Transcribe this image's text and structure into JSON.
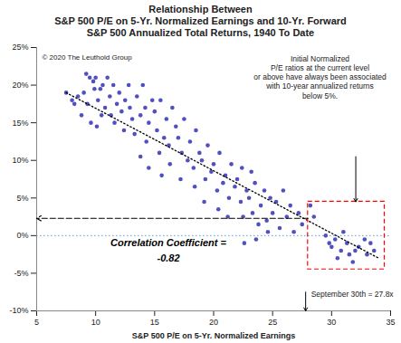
{
  "chart_data": {
    "type": "scatter",
    "title": "Relationship Between",
    "subtitle": [
      "S&P 500 P/E on 5-Yr. Normalized Earnings and 10-Yr. Forward",
      "S&P 500 Annualized Total Returns, 1940 To Date"
    ],
    "x_label": "S&P 500 P/E on 5-Yr. Normalized Earnings",
    "x": [
      7.5,
      8,
      8.2,
      8.5,
      9,
      9.2,
      9.5,
      9.8,
      10,
      9.3,
      8.8,
      9.6,
      10.2,
      10.4,
      10.6,
      10.8,
      10.5,
      9.9,
      10.1,
      11,
      11.2,
      11.5,
      11.3,
      11.8,
      11.6,
      12,
      12.2,
      12.5,
      12.8,
      12.4,
      12.9,
      13.1,
      13.5,
      13.3,
      13.8,
      14,
      14.2,
      14.5,
      14.8,
      14.3,
      15,
      15.2,
      15.5,
      15.8,
      15.4,
      16,
      16.2,
      16.5,
      16.8,
      16.3,
      17,
      17.3,
      17.5,
      17.8,
      17.2,
      18,
      18.3,
      18.5,
      18.8,
      18.4,
      19,
      19.3,
      19.5,
      19.8,
      19.2,
      20,
      20.3,
      20.5,
      20.8,
      20.4,
      21,
      21.3,
      21.5,
      21.8,
      21.2,
      22,
      22.3,
      22.5,
      22.8,
      22.4,
      23,
      23.3,
      23.5,
      23.8,
      23.2,
      24,
      24.3,
      24.5,
      24.8,
      24.6,
      25,
      25.3,
      25.6,
      25.9,
      26.2,
      26.5,
      26.8,
      27.2,
      27.5,
      28.2,
      28.5,
      29.5,
      30,
      30.3,
      30.8,
      31,
      31.3,
      31.8,
      32,
      32.3,
      32.8,
      33,
      33.3,
      33.6,
      30.5,
      29.8,
      31.5,
      14.5,
      15.6,
      13.8,
      22.6,
      23.6
    ],
    "values": [
      19,
      18,
      17.5,
      18.5,
      19,
      21.5,
      21,
      20.5,
      21,
      17.5,
      16,
      15,
      18,
      19.5,
      20,
      17,
      16,
      19.5,
      14.5,
      21,
      18.5,
      20,
      16,
      17.5,
      15,
      19,
      16.5,
      18,
      20,
      14,
      17,
      15.5,
      18.5,
      13.5,
      16,
      20,
      17,
      15,
      18,
      12.5,
      16.5,
      14,
      18,
      13,
      11,
      15.5,
      12,
      17,
      14.5,
      9.5,
      13,
      11,
      15.5,
      10,
      7.5,
      12.5,
      9,
      14,
      11,
      6.5,
      10,
      7.5,
      12,
      8.5,
      4.5,
      9.5,
      6,
      11,
      7,
      3.5,
      8,
      5,
      9.5,
      6.5,
      2.5,
      7.5,
      4.5,
      2.5,
      6,
      9,
      5,
      3,
      7,
      1.5,
      8.5,
      4,
      6,
      2,
      5,
      0.5,
      3,
      4.5,
      1,
      6,
      2.5,
      4,
      0.5,
      3,
      1.5,
      4,
      2.5,
      0,
      -1.5,
      -0.5,
      -2,
      0.5,
      -1,
      -3.5,
      -2,
      -1.5,
      -0.5,
      -2.5,
      -1,
      -2,
      -3,
      -1,
      -2.5,
      9,
      8,
      10.5,
      -1,
      -0.5
    ],
    "color": "#5050c0",
    "marker": "circle",
    "xlim": [
      5,
      35
    ],
    "xticks": [
      5,
      10,
      15,
      20,
      25,
      30,
      35
    ],
    "ylim": [
      -10,
      25
    ],
    "yticks": [
      {
        "value": -10,
        "label": "-10%"
      },
      {
        "value": -5,
        "label": "-5%"
      },
      {
        "value": 0,
        "label": "0%"
      },
      {
        "value": 5,
        "label": "5%"
      },
      {
        "value": 10,
        "label": "10%"
      },
      {
        "value": 15,
        "label": "15%"
      },
      {
        "value": 20,
        "label": "20%"
      },
      {
        "value": 25,
        "label": "25%"
      }
    ],
    "grid": false,
    "trend_line": {
      "x": [
        7.5,
        34
      ],
      "values": [
        19,
        -3
      ],
      "color": "#000000",
      "line_style": "dotted"
    },
    "zero_line": {
      "value": 0,
      "color": "#5b9bd5",
      "line_style": "dotted"
    },
    "highlight_box": {
      "xlim": [
        28,
        34.5
      ],
      "ylim": [
        -4.5,
        4.5
      ],
      "color": "#ff0000",
      "line_style": "dashed"
    },
    "reference_x": 27.8,
    "reference_y": 2.3,
    "copyright": "© 2020 The Leuthold Group",
    "correlation_label": "Correlation Coefficient =",
    "correlation_value": "-0.82",
    "current_label": "September 30th = 27.8x",
    "callout": [
      "Initial Normalized",
      "P/E ratios at the current level",
      "or above have always been associated",
      "with 10-year annualized returns",
      "below 5%."
    ]
  }
}
